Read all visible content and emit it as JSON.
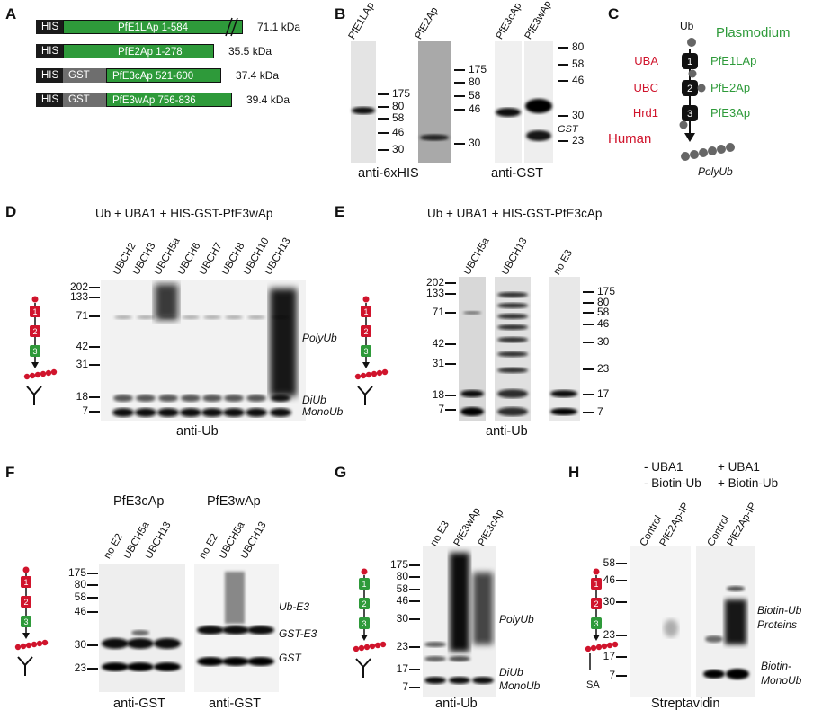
{
  "panels": {
    "A": "A",
    "B": "B",
    "C": "C",
    "D": "D",
    "E": "E",
    "F": "F",
    "G": "G",
    "H": "H"
  },
  "A": {
    "constructs": [
      {
        "tags": [
          "HIS"
        ],
        "name": "PfE1LAp 1-584",
        "kda": "71.1 kDa"
      },
      {
        "tags": [
          "HIS"
        ],
        "name": "PfE2Ap 1-278",
        "kda": "35.5 kDa"
      },
      {
        "tags": [
          "HIS",
          "GST"
        ],
        "name": "PfE3cAp 521-600",
        "kda": "37.4 kDa"
      },
      {
        "tags": [
          "HIS",
          "GST"
        ],
        "name": "PfE3wAp 756-836",
        "kda": "39.4 kDa"
      }
    ],
    "colors": {
      "his": "#1a1a1a",
      "gst": "#6e6e6e",
      "protein": "#2e9a3a"
    }
  },
  "B": {
    "lanes": [
      "PfE1LAp",
      "PfE2Ap",
      "PfE3cAp",
      "PfE3wAp"
    ],
    "markers_left": [
      "175",
      "80",
      "58",
      "46",
      "30"
    ],
    "markers_mid": [
      "175",
      "80",
      "58",
      "46",
      "30"
    ],
    "markers_right": [
      "80",
      "58",
      "46",
      "30",
      "23"
    ],
    "gst_label": "GST",
    "captions": [
      "anti-6xHIS",
      "anti-GST"
    ]
  },
  "C": {
    "ub": "Ub",
    "plasmodium": "Plasmodium",
    "human": "Human",
    "human_enzymes": [
      "UBA",
      "UBC",
      "Hrd1"
    ],
    "pf_enzymes": [
      "PfE1LAp",
      "PfE2Ap",
      "PfE3Ap"
    ],
    "steps": [
      "1",
      "2",
      "3"
    ],
    "polyub": "PolyUb",
    "colors": {
      "red": "#d0142c",
      "green": "#2e9a3a"
    }
  },
  "D": {
    "title": "Ub + UBA1 + HIS-GST-PfE3wAp",
    "lanes": [
      "UBCH2",
      "UBCH3",
      "UBCH5a",
      "UBCH6",
      "UBCH7",
      "UBCH8",
      "UBCH10",
      "UBCH13"
    ],
    "markers": [
      "202",
      "133",
      "71",
      "42",
      "31",
      "18",
      "7"
    ],
    "annotations": [
      "PolyUb",
      "DiUb",
      "MonoUb"
    ],
    "caption": "anti-Ub"
  },
  "E": {
    "title": "Ub + UBA1 + HIS-GST-PfE3cAp",
    "lanes": [
      "UBCH5a",
      "UBCH13",
      "no E3"
    ],
    "markers_left": [
      "202",
      "133",
      "71",
      "42",
      "31",
      "18",
      "7"
    ],
    "markers_right": [
      "175",
      "80",
      "58",
      "46",
      "30",
      "23",
      "17",
      "7"
    ],
    "caption": "anti-Ub"
  },
  "F": {
    "titles": [
      "PfE3cAp",
      "PfE3wAp"
    ],
    "lanes": [
      "no E2",
      "UBCH5a",
      "UBCH13"
    ],
    "markers": [
      "175",
      "80",
      "58",
      "46",
      "30",
      "23"
    ],
    "annotations": [
      "Ub-E3",
      "GST-E3",
      "GST"
    ],
    "captions": [
      "anti-GST",
      "anti-GST"
    ]
  },
  "G": {
    "lanes": [
      "no E3",
      "PfE3wAp",
      "PfE3cAp"
    ],
    "markers": [
      "175",
      "80",
      "58",
      "46",
      "30",
      "23",
      "17",
      "7"
    ],
    "annotations": [
      "PolyUb",
      "DiUb",
      "MonoUb"
    ],
    "caption": "anti-Ub"
  },
  "H": {
    "conditions": [
      [
        "- UBA1",
        "- Biotin-Ub"
      ],
      [
        "+ UBA1",
        "+ Biotin-Ub"
      ]
    ],
    "lanes": [
      "Control",
      "PfE2Ap-IP",
      "Control",
      "PfE2Ap-IP"
    ],
    "markers": [
      "58",
      "46",
      "30",
      "23",
      "17",
      "7"
    ],
    "annotations": [
      "Biotin-Ub",
      "Proteins",
      "Biotin-",
      "MonoUb"
    ],
    "sa": "SA",
    "caption": "Streptavidin"
  }
}
